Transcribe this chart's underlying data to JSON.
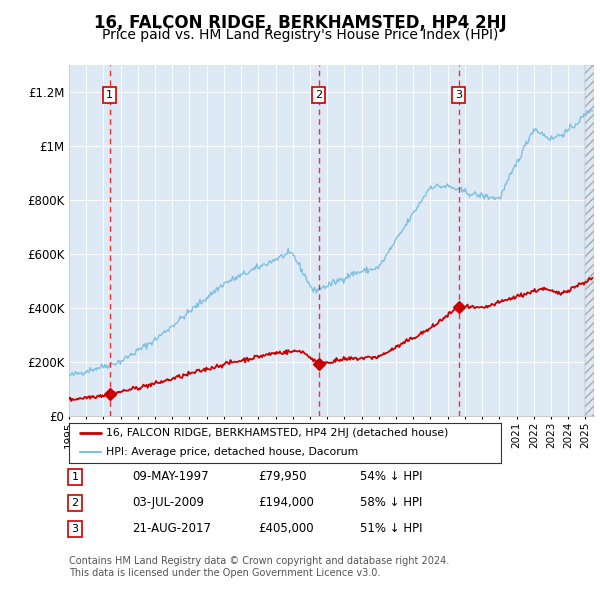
{
  "title": "16, FALCON RIDGE, BERKHAMSTED, HP4 2HJ",
  "subtitle": "Price paid vs. HM Land Registry's House Price Index (HPI)",
  "title_fontsize": 12,
  "subtitle_fontsize": 10,
  "plot_bg_color": "#ddeaf5",
  "hpi_color": "#7fbfdf",
  "price_color": "#cc0000",
  "sale_dates": [
    1997.36,
    2009.5,
    2017.64
  ],
  "sale_prices": [
    79950,
    194000,
    405000
  ],
  "sale_labels": [
    "1",
    "2",
    "3"
  ],
  "sale_info": [
    {
      "num": "1",
      "date": "09-MAY-1997",
      "price": "£79,950",
      "hpi": "54% ↓ HPI"
    },
    {
      "num": "2",
      "date": "03-JUL-2009",
      "price": "£194,000",
      "hpi": "58% ↓ HPI"
    },
    {
      "num": "3",
      "date": "21-AUG-2017",
      "price": "£405,000",
      "hpi": "51% ↓ HPI"
    }
  ],
  "legend_line1": "16, FALCON RIDGE, BERKHAMSTED, HP4 2HJ (detached house)",
  "legend_line2": "HPI: Average price, detached house, Dacorum",
  "footnote1": "Contains HM Land Registry data © Crown copyright and database right 2024.",
  "footnote2": "This data is licensed under the Open Government Licence v3.0.",
  "ylim": [
    0,
    1300000
  ],
  "yticks": [
    0,
    200000,
    400000,
    600000,
    800000,
    1000000,
    1200000
  ],
  "xlim_start": 1995.0,
  "xlim_end": 2025.5,
  "xticks": [
    1995,
    1996,
    1997,
    1998,
    1999,
    2000,
    2001,
    2002,
    2003,
    2004,
    2005,
    2006,
    2007,
    2008,
    2009,
    2010,
    2011,
    2012,
    2013,
    2014,
    2015,
    2016,
    2017,
    2018,
    2019,
    2020,
    2021,
    2022,
    2023,
    2024,
    2025
  ]
}
